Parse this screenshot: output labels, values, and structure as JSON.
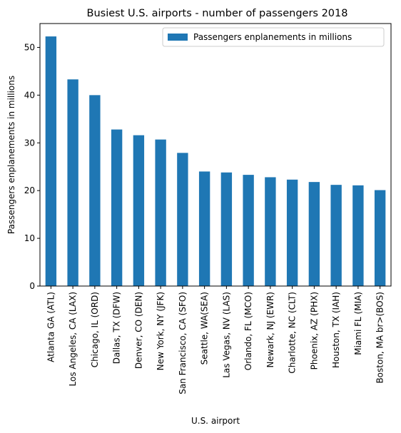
{
  "chart_data": {
    "type": "bar",
    "title": "Busiest U.S. airports - number of passengers 2018",
    "xlabel": "U.S. airport",
    "ylabel": "Passengers enplanements in millions",
    "ylim": [
      0,
      55
    ],
    "yticks": [
      0,
      10,
      20,
      30,
      40,
      50
    ],
    "grid": false,
    "legend_position": "top-right",
    "color": "#1f77b4",
    "categories": [
      "Atlanta GA (ATL)",
      "Los Angeles, CA (LAX)",
      "Chicago, IL (ORD)",
      "Dallas, TX (DFW)",
      "Denver, CO (DEN)",
      "New York, NY (JFK)",
      "San Francisco, CA (SFO)",
      "Seattle, WA(SEA)",
      "Las Vegas, NV (LAS)",
      "Orlando, FL (MCO)",
      "Newark, NJ (EWR)",
      "Charlotte, NC (CLT)",
      "Phoenix, AZ (PHX)",
      "Houston, TX (IAH)",
      "Miami FL (MIA)",
      "Boston, MA br>(BOS)"
    ],
    "series": [
      {
        "name": "Passengers enplanements in millions",
        "values": [
          52.3,
          43.3,
          40.0,
          32.8,
          31.6,
          30.7,
          27.9,
          24.0,
          23.8,
          23.3,
          22.8,
          22.3,
          21.8,
          21.2,
          21.1,
          20.1
        ]
      }
    ]
  }
}
